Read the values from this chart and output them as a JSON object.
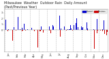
{
  "title": "Milwaukee  Weather  Outdoor Rain  Daily Amount  (Past/Previous Year)",
  "background_color": "#ffffff",
  "plot_bg_color": "#ffffff",
  "grid_color": "#aaaaaa",
  "bar_color_current": "#0000cc",
  "bar_color_previous": "#cc0000",
  "legend_label_current": "Current",
  "legend_label_previous": "Previous",
  "n_bars": 365,
  "seed": 42,
  "title_fontsize": 3.5,
  "tick_fontsize": 2.5
}
